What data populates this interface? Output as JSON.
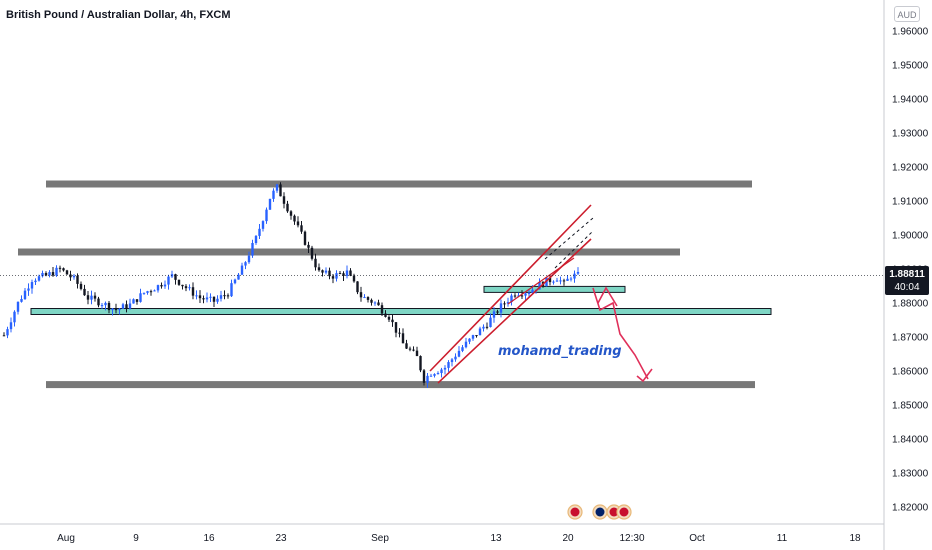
{
  "title": "British Pound / Australian Dollar, 4h, FXCM",
  "currency_unit": "AUD",
  "current_price": "1.88811",
  "countdown": "40:04",
  "watermark": "mohamd_trading",
  "colors": {
    "up": "#2962ff",
    "down": "#131722",
    "zone_gray": "#787878",
    "zone_teal": "#7fd6c5",
    "channel_red": "#cc1d2d",
    "arrow": "#e0305a",
    "grid_axis": "#c9cbd1"
  },
  "chart_data": {
    "type": "candlestick",
    "title": "British Pound / Australian Dollar, 4h, FXCM",
    "ylim": [
      1.814,
      1.964
    ],
    "y_ticks": [
      "1.96000",
      "1.95000",
      "1.94000",
      "1.93000",
      "1.92000",
      "1.91000",
      "1.90000",
      "1.89000",
      "1.88000",
      "1.87000",
      "1.86000",
      "1.85000",
      "1.84000",
      "1.83000",
      "1.82000"
    ],
    "x_ticks": [
      "Aug",
      "9",
      "16",
      "23",
      "Sep",
      "13",
      "20",
      "12:30",
      "Oct",
      "11",
      "18"
    ],
    "close_path": [
      {
        "t": 0,
        "p": 1.8705
      },
      {
        "t": 2,
        "p": 1.88
      },
      {
        "t": 4,
        "p": 1.887
      },
      {
        "t": 6,
        "p": 1.888
      },
      {
        "t": 8,
        "p": 1.89
      },
      {
        "t": 10,
        "p": 1.887
      },
      {
        "t": 12,
        "p": 1.8815
      },
      {
        "t": 14,
        "p": 1.88
      },
      {
        "t": 16,
        "p": 1.878
      },
      {
        "t": 18,
        "p": 1.8795
      },
      {
        "t": 20,
        "p": 1.883
      },
      {
        "t": 22,
        "p": 1.885
      },
      {
        "t": 24,
        "p": 1.888
      },
      {
        "t": 26,
        "p": 1.8845
      },
      {
        "t": 28,
        "p": 1.8815
      },
      {
        "t": 30,
        "p": 1.8805
      },
      {
        "t": 32,
        "p": 1.883
      },
      {
        "t": 34,
        "p": 1.89
      },
      {
        "t": 36,
        "p": 1.899
      },
      {
        "t": 38,
        "p": 1.911
      },
      {
        "t": 39,
        "p": 1.914
      },
      {
        "t": 41,
        "p": 1.906
      },
      {
        "t": 43,
        "p": 1.898
      },
      {
        "t": 45,
        "p": 1.889
      },
      {
        "t": 47,
        "p": 1.888
      },
      {
        "t": 49,
        "p": 1.889
      },
      {
        "t": 51,
        "p": 1.882
      },
      {
        "t": 53,
        "p": 1.88
      },
      {
        "t": 55,
        "p": 1.876
      },
      {
        "t": 57,
        "p": 1.868
      },
      {
        "t": 59,
        "p": 1.864
      },
      {
        "t": 60,
        "p": 1.8575
      },
      {
        "t": 61,
        "p": 1.8595
      },
      {
        "t": 63,
        "p": 1.861
      },
      {
        "t": 65,
        "p": 1.866
      },
      {
        "t": 67,
        "p": 1.87
      },
      {
        "t": 69,
        "p": 1.874
      },
      {
        "t": 71,
        "p": 1.879
      },
      {
        "t": 73,
        "p": 1.883
      },
      {
        "t": 75,
        "p": 1.8835
      },
      {
        "t": 77,
        "p": 1.886
      },
      {
        "t": 79,
        "p": 1.8875
      },
      {
        "t": 80,
        "p": 1.8855
      },
      {
        "t": 81,
        "p": 1.888
      },
      {
        "t": 82,
        "p": 1.8881
      }
    ],
    "horizontal_zones": [
      {
        "level": 1.915,
        "color": "gray"
      },
      {
        "level": 1.895,
        "color": "gray"
      },
      {
        "level": 1.8775,
        "color": "teal"
      },
      {
        "level": 1.856,
        "color": "gray"
      },
      {
        "level": 1.884,
        "color": "teal"
      }
    ],
    "channel": {
      "color": "red",
      "parallel_lines": 3,
      "direction": "up"
    },
    "projection": {
      "direction": "down",
      "target": 1.859
    }
  }
}
